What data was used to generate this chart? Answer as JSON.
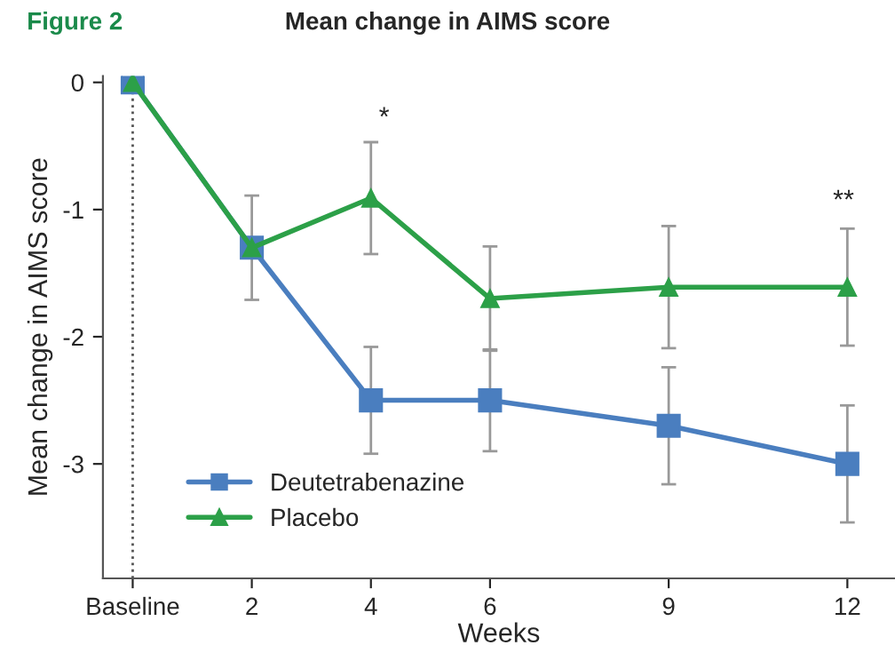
{
  "chart_data": {
    "type": "line",
    "title": "Mean change in AIMS score",
    "annotations": [
      "Figure 2",
      "*",
      "**"
    ],
    "xlabel": "Weeks",
    "ylabel": "Mean change in AIMS score",
    "x": [
      0,
      2,
      4,
      6,
      9,
      12
    ],
    "series": [
      {
        "name": "Deutetrabenazine",
        "color": "#4a7ebf",
        "marker": "square",
        "values": [
          0,
          -1.3,
          -2.5,
          -2.5,
          -2.7,
          -3.0
        ],
        "errors": [
          null,
          0.41,
          0.42,
          0.4,
          0.46,
          0.46
        ]
      },
      {
        "name": "Placebo",
        "color": "#2ca048",
        "marker": "triangle",
        "values": [
          0,
          -1.3,
          -0.91,
          -1.7,
          -1.61,
          -1.61
        ],
        "errors": [
          null,
          null,
          0.44,
          0.41,
          0.48,
          0.46
        ]
      }
    ],
    "xlim": [
      -0.5,
      12.8
    ],
    "xticks": [
      {
        "value": 0,
        "label": "Baseline"
      },
      2,
      4,
      6,
      9,
      12
    ],
    "ylim": [
      -3.9,
      0.05
    ],
    "yticks": [
      0,
      -1,
      -2,
      -3
    ],
    "ref_lines": [
      {
        "axis": "x",
        "value": 0,
        "line_style": "dotted",
        "color": "#555555"
      }
    ],
    "legend": "bottom left",
    "grid": false,
    "line_style": "solid"
  }
}
